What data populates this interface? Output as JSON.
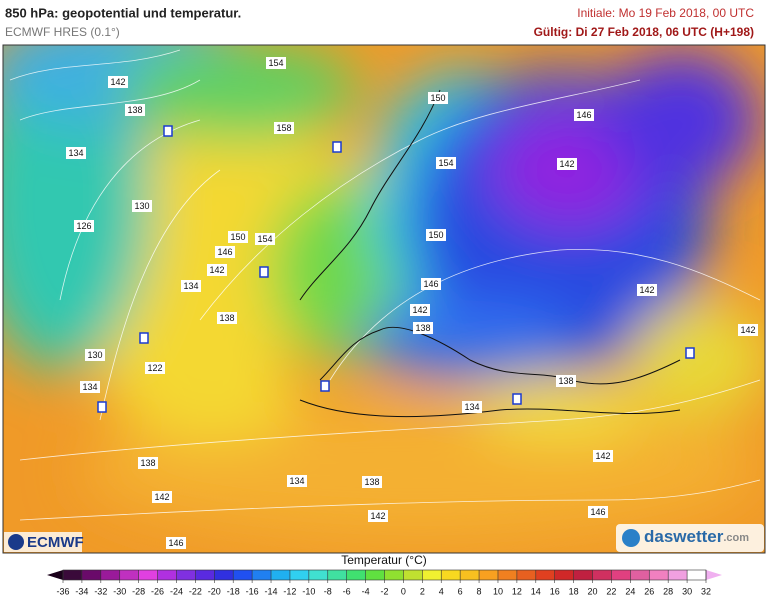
{
  "header": {
    "title": "850 hPa: geopotential und temperatur.",
    "model": "ECMWF HRES (0.1°)",
    "initial": "Initiale: Mo 19 Feb 2018, 00 UTC",
    "valid": "Gültig: Di 27 Feb 2018, 06 UTC (H+198)"
  },
  "map": {
    "contour_labels": [
      "142",
      "138",
      "134",
      "130",
      "126",
      "154",
      "158",
      "150",
      "154",
      "146",
      "142",
      "134",
      "138",
      "130",
      "122",
      "134",
      "150",
      "146",
      "142",
      "154",
      "150",
      "146",
      "142",
      "138",
      "142",
      "142",
      "138",
      "134",
      "142",
      "138",
      "134",
      "138",
      "142",
      "142",
      "146",
      "146"
    ]
  },
  "logos": {
    "left": "ECMWF",
    "right": "daswetter",
    "right_suffix": ".com"
  },
  "colorbar": {
    "title": "Temperatur (°C)",
    "ticks": [
      -36,
      -34,
      -32,
      -30,
      -28,
      -26,
      -24,
      -22,
      -20,
      -18,
      -16,
      -14,
      -12,
      -10,
      -8,
      -6,
      -4,
      -2,
      0,
      2,
      4,
      6,
      8,
      10,
      12,
      14,
      16,
      18,
      20,
      22,
      24,
      26,
      28,
      30,
      32
    ],
    "colors": [
      "#3a0a3a",
      "#6a0a6a",
      "#9a1a9a",
      "#c030c0",
      "#e040e0",
      "#b030e0",
      "#8030e0",
      "#5a2ae0",
      "#3030e0",
      "#2050f0",
      "#2080f0",
      "#20b0f0",
      "#30d0f0",
      "#40e0d0",
      "#40e0a0",
      "#40e070",
      "#60e040",
      "#90e030",
      "#c0e030",
      "#f0f030",
      "#f8d820",
      "#f8c020",
      "#f8a020",
      "#f08020",
      "#e86020",
      "#e04020",
      "#d02828",
      "#c02040",
      "#d03060",
      "#e04080",
      "#e060a0",
      "#f080c0",
      "#f0a0e0"
    ],
    "low_color": "#1a001a",
    "high_color": "#f0b0f0"
  }
}
